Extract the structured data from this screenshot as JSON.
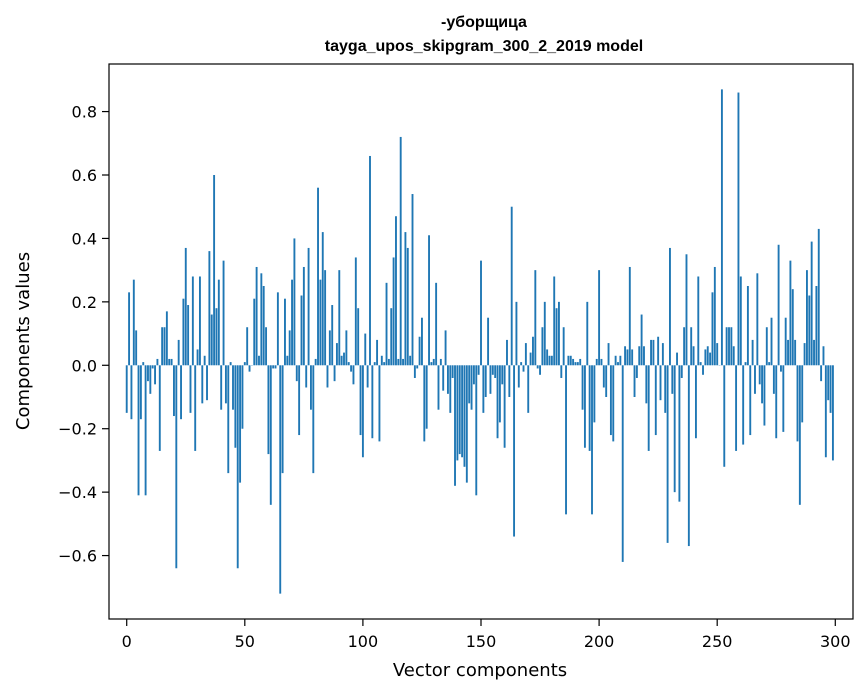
{
  "chart_data": {
    "type": "bar",
    "title": "-уборщица",
    "subtitle": "tayga_upos_skipgram_300_2_2019 model",
    "xlabel": "Vector components",
    "ylabel": "Components values",
    "xlim": [
      -7.5,
      307.5
    ],
    "ylim": [
      -0.8,
      0.95
    ],
    "xticks": [
      0,
      50,
      100,
      150,
      200,
      250,
      300
    ],
    "xtick_labels": [
      "0",
      "50",
      "100",
      "150",
      "200",
      "250",
      "300"
    ],
    "yticks": [
      -0.6,
      -0.4,
      -0.2,
      0.0,
      0.2,
      0.4,
      0.6,
      0.8
    ],
    "ytick_labels": [
      "−0.6",
      "−0.4",
      "−0.2",
      "0.0",
      "0.2",
      "0.4",
      "0.6",
      "0.8"
    ],
    "grid": false,
    "color": "#1f77b4",
    "values": [
      -0.15,
      0.23,
      -0.17,
      0.27,
      0.11,
      -0.41,
      -0.17,
      0.01,
      -0.41,
      -0.05,
      -0.09,
      -0.01,
      -0.06,
      0.02,
      -0.27,
      0.12,
      0.12,
      0.17,
      0.02,
      0.02,
      -0.16,
      -0.64,
      0.08,
      -0.17,
      0.21,
      0.37,
      0.19,
      -0.15,
      0.28,
      -0.27,
      0.05,
      0.28,
      -0.12,
      0.03,
      -0.11,
      0.36,
      0.16,
      0.6,
      0.18,
      0.27,
      -0.14,
      0.33,
      -0.12,
      -0.34,
      0.01,
      -0.14,
      -0.26,
      -0.64,
      -0.37,
      -0.2,
      0.01,
      0.12,
      -0.02,
      0.0,
      0.21,
      0.31,
      0.03,
      0.29,
      0.25,
      0.12,
      -0.28,
      -0.44,
      -0.01,
      -0.01,
      0.23,
      -0.72,
      -0.34,
      0.21,
      0.03,
      0.11,
      0.27,
      0.4,
      -0.05,
      -0.22,
      0.22,
      0.31,
      -0.07,
      0.37,
      -0.14,
      -0.34,
      0.02,
      0.56,
      0.27,
      0.42,
      0.3,
      -0.07,
      0.11,
      0.19,
      -0.05,
      0.07,
      0.3,
      0.03,
      0.04,
      0.11,
      0.01,
      -0.02,
      -0.06,
      0.34,
      0.18,
      -0.22,
      -0.29,
      0.1,
      -0.07,
      0.66,
      -0.23,
      0.01,
      0.08,
      -0.24,
      0.03,
      0.01,
      0.26,
      0.02,
      0.18,
      0.34,
      0.47,
      0.02,
      0.72,
      0.02,
      0.42,
      0.37,
      0.03,
      0.54,
      -0.04,
      -0.01,
      0.09,
      0.15,
      -0.24,
      -0.2,
      0.41,
      0.01,
      0.02,
      0.26,
      -0.14,
      0.02,
      -0.08,
      0.11,
      -0.09,
      -0.15,
      -0.04,
      -0.38,
      -0.3,
      -0.28,
      -0.29,
      -0.32,
      -0.37,
      -0.12,
      -0.14,
      -0.06,
      -0.41,
      -0.03,
      0.33,
      -0.15,
      -0.1,
      0.15,
      -0.09,
      -0.03,
      -0.04,
      -0.23,
      -0.18,
      -0.06,
      -0.26,
      0.08,
      -0.1,
      0.5,
      -0.54,
      0.2,
      -0.07,
      0.01,
      -0.02,
      0.07,
      -0.15,
      0.04,
      0.09,
      0.3,
      -0.01,
      -0.03,
      0.12,
      0.2,
      0.05,
      0.03,
      0.03,
      0.28,
      0.18,
      0.2,
      -0.04,
      0.12,
      -0.47,
      0.03,
      0.03,
      0.02,
      0.01,
      0.01,
      0.02,
      -0.14,
      -0.26,
      0.2,
      -0.27,
      -0.47,
      -0.18,
      0.02,
      0.3,
      0.02,
      -0.07,
      -0.1,
      0.07,
      -0.22,
      -0.24,
      0.03,
      0.01,
      0.03,
      -0.62,
      0.06,
      0.05,
      0.31,
      0.05,
      -0.1,
      -0.04,
      0.06,
      0.16,
      0.06,
      -0.12,
      -0.27,
      0.08,
      0.08,
      -0.22,
      0.09,
      -0.11,
      0.07,
      -0.15,
      -0.56,
      0.37,
      -0.09,
      -0.4,
      0.04,
      -0.43,
      -0.04,
      0.12,
      0.35,
      -0.57,
      0.12,
      0.06,
      -0.23,
      0.28,
      0.01,
      -0.03,
      0.05,
      0.06,
      0.04,
      0.23,
      0.31,
      0.07,
      0.0,
      0.87,
      -0.32,
      0.12,
      0.12,
      0.12,
      0.06,
      -0.27,
      0.86,
      0.28,
      -0.25,
      0.01,
      0.25,
      -0.22,
      0.08,
      -0.09,
      0.29,
      -0.06,
      -0.12,
      -0.19,
      0.12,
      0.01,
      0.15,
      -0.09,
      -0.23,
      0.38,
      -0.02,
      -0.21,
      0.15,
      0.08,
      0.33,
      0.24,
      0.08,
      -0.24,
      -0.44,
      -0.18,
      0.07,
      0.3,
      0.22,
      0.39,
      0.08,
      0.25,
      0.43,
      -0.05,
      0.06,
      -0.29,
      -0.11,
      -0.15,
      -0.3
    ]
  }
}
